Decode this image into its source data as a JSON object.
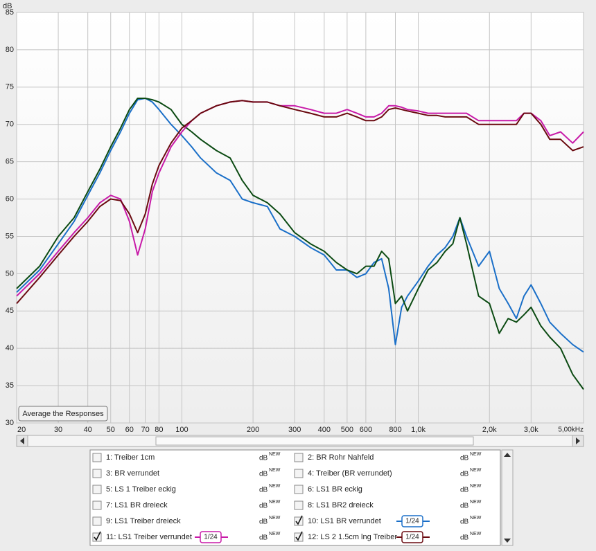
{
  "chart_data": {
    "type": "line",
    "x_scale": "log",
    "y_label": "dB",
    "xlim": [
      20,
      5000
    ],
    "ylim": [
      30,
      85
    ],
    "xticks": [
      20,
      30,
      40,
      50,
      60,
      70,
      80,
      100,
      200,
      300,
      400,
      500,
      600,
      800,
      {
        "value": 1000,
        "label": "1,0k"
      },
      {
        "value": 2000,
        "label": "2,0k"
      },
      {
        "value": 3000,
        "label": "3,0k"
      },
      {
        "value": 5000,
        "label": "5,00kHz"
      }
    ],
    "yticks": [
      30,
      35,
      40,
      45,
      50,
      55,
      60,
      65,
      70,
      75,
      80,
      85
    ],
    "grid": true,
    "x": [
      20,
      25,
      30,
      35,
      40,
      45,
      50,
      55,
      60,
      65,
      70,
      75,
      80,
      90,
      100,
      110,
      120,
      140,
      160,
      180,
      200,
      230,
      260,
      300,
      350,
      400,
      450,
      500,
      550,
      600,
      650,
      700,
      750,
      800,
      850,
      900,
      1000,
      1100,
      1200,
      1300,
      1400,
      1500,
      1600,
      1800,
      2000,
      2200,
      2400,
      2600,
      2800,
      3000,
      3300,
      3600,
      4000,
      4500,
      5000
    ],
    "series": [
      {
        "color": "#1a6fc8",
        "values": [
          47.5,
          50.5,
          54,
          57,
          60.5,
          63.5,
          66.5,
          69,
          71.5,
          73.3,
          73.5,
          73,
          72,
          70,
          68.5,
          67,
          65.5,
          63.5,
          62.5,
          60,
          59.5,
          59,
          56,
          55,
          53.5,
          52.5,
          50.5,
          50.5,
          49.5,
          50,
          51.5,
          52,
          48,
          40.5,
          45.5,
          47,
          49,
          51,
          52.5,
          53.5,
          55,
          57.5,
          55,
          51,
          53,
          48,
          46,
          44,
          47,
          48.5,
          46,
          43.5,
          42,
          40.5,
          39.5
        ]
      },
      {
        "color": "#0b4a12",
        "values": [
          48,
          51,
          55,
          57.5,
          61,
          64,
          67,
          69.5,
          72,
          73.5,
          73.5,
          73.3,
          73,
          72,
          70,
          69,
          68,
          66.5,
          65.5,
          62.5,
          60.5,
          59.5,
          58,
          55.5,
          54,
          53,
          51.5,
          50.5,
          50,
          51,
          51,
          53,
          52,
          46,
          47,
          45,
          48,
          50.5,
          51.5,
          53,
          54,
          57.5,
          54,
          47,
          46,
          42,
          44,
          43.5,
          44.5,
          45.5,
          43,
          41.5,
          40,
          36.5,
          34.5
        ]
      },
      {
        "color": "#c81aa8",
        "values": [
          47,
          50,
          53,
          55.5,
          57.5,
          59.5,
          60.5,
          60,
          57,
          52.5,
          56,
          61,
          63.5,
          67,
          69,
          70.5,
          71.5,
          72.5,
          73,
          73.2,
          73,
          73,
          72.5,
          72.5,
          72,
          71.5,
          71.5,
          72,
          71.5,
          71,
          71,
          71.5,
          72.5,
          72.5,
          72.3,
          72,
          71.8,
          71.5,
          71.5,
          71.5,
          71.5,
          71.5,
          71.5,
          70.5,
          70.5,
          70.5,
          70.5,
          70.5,
          71.5,
          71.5,
          70.5,
          68.5,
          69,
          67.5,
          69
        ]
      },
      {
        "color": "#6a0a10",
        "values": [
          46,
          49.5,
          52.5,
          55,
          57,
          59,
          60,
          59.8,
          58,
          55.5,
          58,
          62,
          64.5,
          67.5,
          69.5,
          70.5,
          71.5,
          72.5,
          73,
          73.2,
          73,
          73,
          72.5,
          72,
          71.5,
          71,
          71,
          71.5,
          71,
          70.5,
          70.5,
          71,
          72,
          72.2,
          72,
          71.8,
          71.5,
          71.2,
          71.2,
          71,
          71,
          71,
          71,
          70,
          70,
          70,
          70,
          70,
          71.5,
          71.5,
          70,
          68,
          68,
          66.5,
          67
        ]
      }
    ]
  },
  "button": "Average the Responses",
  "panel": {
    "unit": "dB",
    "badge": "NEW",
    "smoothing": "1/24",
    "items": [
      {
        "label": "1: Treiber 1cm",
        "color": "#f07818",
        "checked": false,
        "smoothed": false
      },
      {
        "label": "2: BR Rohr Nahfeld",
        "color": "#38c838",
        "checked": false,
        "smoothed": false
      },
      {
        "label": "3: BR verrundet",
        "color": "#108010",
        "checked": false,
        "smoothed": false
      },
      {
        "label": "4: Treiber (BR verrundet)",
        "color": "#a01010",
        "checked": false,
        "smoothed": false
      },
      {
        "label": "5: LS 1 Treiber eckig",
        "color": "#a01010",
        "checked": false,
        "smoothed": false
      },
      {
        "label": "6: LS1 BR eckig",
        "color": "#106010",
        "checked": false,
        "smoothed": false
      },
      {
        "label": "7: LS1 BR dreieck",
        "color": "#4040c0",
        "checked": false,
        "smoothed": false
      },
      {
        "label": "8: LS1 BR2 dreieck",
        "color": "#f07818",
        "checked": false,
        "smoothed": false
      },
      {
        "label": "9: LS1 Treiber dreieck",
        "color": "#20a020",
        "checked": false,
        "smoothed": false
      },
      {
        "label": "10: LS1 BR verrundet",
        "color": "#1a6fc8",
        "checked": true,
        "smoothed": true
      },
      {
        "label": "11: LS1 Treiber verrundet",
        "color": "#c81aa8",
        "checked": true,
        "smoothed": true
      },
      {
        "label": "12: LS 2 1.5cm lng Treiber",
        "color": "#6a0a10",
        "checked": true,
        "smoothed": true
      }
    ]
  }
}
